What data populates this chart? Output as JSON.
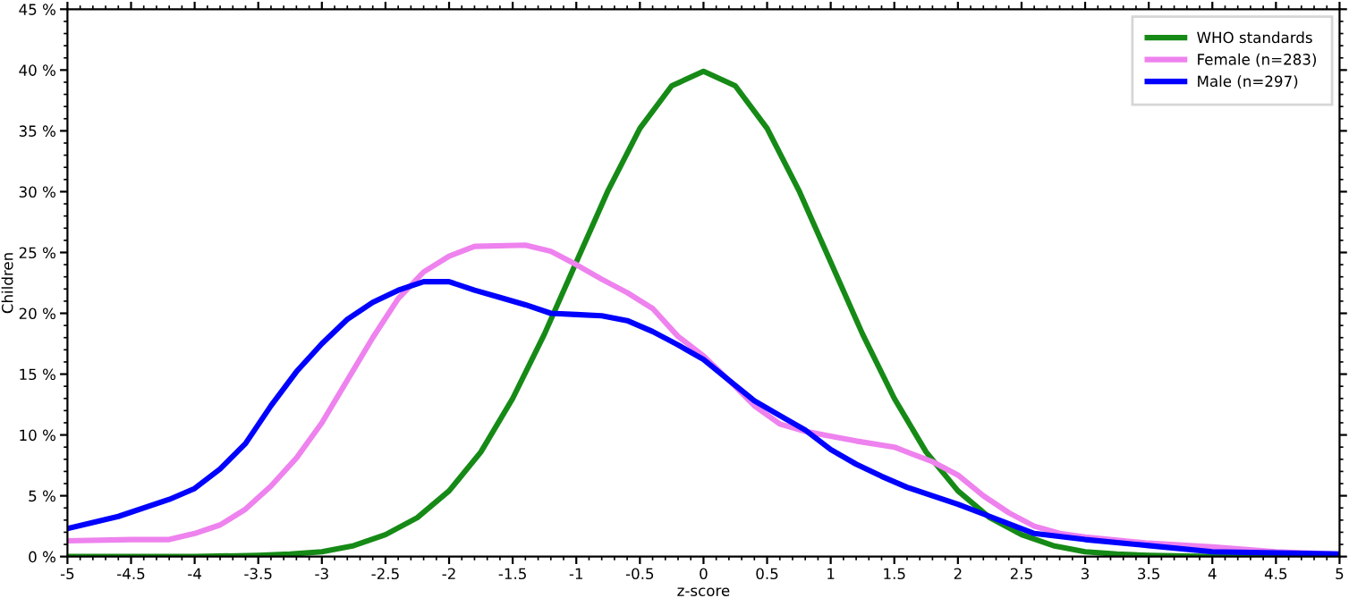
{
  "chart_data": {
    "type": "line",
    "xlabel": "z-score",
    "ylabel": "Children",
    "legend": "top right",
    "grid": false,
    "marker": "none",
    "line_style": "solid",
    "xlim": [
      -5,
      5
    ],
    "ylim": [
      0,
      45
    ],
    "xticks": [
      -5,
      -4.5,
      -4,
      -3.5,
      -3,
      -2.5,
      -2,
      -1.5,
      -1,
      -0.5,
      0,
      0.5,
      1,
      1.5,
      2,
      2.5,
      3,
      3.5,
      4,
      4.5,
      5
    ],
    "yticks": [
      {
        "value": 0,
        "label": "0 %"
      },
      {
        "value": 5,
        "label": "5 %"
      },
      {
        "value": 10,
        "label": "10 %"
      },
      {
        "value": 15,
        "label": "15 %"
      },
      {
        "value": 20,
        "label": "20 %"
      },
      {
        "value": 25,
        "label": "25 %"
      },
      {
        "value": 30,
        "label": "30 %"
      },
      {
        "value": 35,
        "label": "35 %"
      },
      {
        "value": 40,
        "label": "40 %"
      },
      {
        "value": 45,
        "label": "45 %"
      }
    ],
    "series": [
      {
        "name": "WHO standards",
        "color": "#168a16",
        "x": [
          -5,
          -4,
          -3.5,
          -3.25,
          -3,
          -2.75,
          -2.5,
          -2.25,
          -2,
          -1.75,
          -1.5,
          -1.25,
          -1,
          -0.75,
          -0.5,
          -0.25,
          0,
          0.25,
          0.5,
          0.75,
          1,
          1.25,
          1.5,
          1.75,
          2,
          2.25,
          2.5,
          2.75,
          3,
          3.25,
          3.5,
          4,
          5
        ],
        "values": [
          0,
          0,
          0.1,
          0.2,
          0.4,
          0.9,
          1.8,
          3.2,
          5.4,
          8.6,
          13,
          18.3,
          24.2,
          30.1,
          35.2,
          38.7,
          39.9,
          38.7,
          35.2,
          30.1,
          24.2,
          18.3,
          13,
          8.6,
          5.4,
          3.2,
          1.8,
          0.9,
          0.4,
          0.2,
          0.1,
          0,
          0
        ]
      },
      {
        "name": "Female (n=283)",
        "color": "#ee82ee",
        "x": [
          -5,
          -4.5,
          -4.2,
          -4,
          -3.8,
          -3.6,
          -3.4,
          -3.2,
          -3,
          -2.8,
          -2.6,
          -2.4,
          -2.2,
          -2,
          -1.8,
          -1.4,
          -1.2,
          -1,
          -0.8,
          -0.6,
          -0.4,
          -0.2,
          0,
          0.2,
          0.4,
          0.6,
          0.8,
          1,
          1.2,
          1.5,
          1.8,
          2,
          2.2,
          2.4,
          2.6,
          2.8,
          3,
          3.5,
          4,
          4.5,
          5
        ],
        "values": [
          1.3,
          1.4,
          1.4,
          1.9,
          2.6,
          3.9,
          5.8,
          8.1,
          11,
          14.5,
          18,
          21.2,
          23.4,
          24.7,
          25.5,
          25.6,
          25.1,
          24,
          22.8,
          21.7,
          20.4,
          18.1,
          16.5,
          14.5,
          12.4,
          10.9,
          10.3,
          9.9,
          9.5,
          9,
          7.8,
          6.7,
          5,
          3.6,
          2.5,
          1.9,
          1.6,
          1.1,
          0.8,
          0.4,
          0.2
        ]
      },
      {
        "name": "Male (n=297)",
        "color": "#0000ff",
        "x": [
          -5,
          -4.6,
          -4.2,
          -4,
          -3.8,
          -3.6,
          -3.4,
          -3.2,
          -3,
          -2.8,
          -2.6,
          -2.4,
          -2.2,
          -2,
          -1.8,
          -1.6,
          -1.4,
          -1.2,
          -1,
          -0.8,
          -0.6,
          -0.4,
          -0.2,
          0,
          0.2,
          0.4,
          0.6,
          0.8,
          1,
          1.2,
          1.4,
          1.6,
          1.8,
          2,
          2.2,
          2.6,
          3,
          3.5,
          4,
          5
        ],
        "values": [
          2.3,
          3.3,
          4.7,
          5.6,
          7.2,
          9.3,
          12.4,
          15.2,
          17.5,
          19.5,
          20.9,
          21.9,
          22.6,
          22.6,
          21.9,
          21.3,
          20.7,
          20,
          19.9,
          19.8,
          19.4,
          18.5,
          17.4,
          16.2,
          14.5,
          12.8,
          11.6,
          10.4,
          8.8,
          7.6,
          6.6,
          5.7,
          5,
          4.3,
          3.5,
          1.9,
          1.4,
          0.9,
          0.4,
          0.2
        ]
      }
    ]
  }
}
